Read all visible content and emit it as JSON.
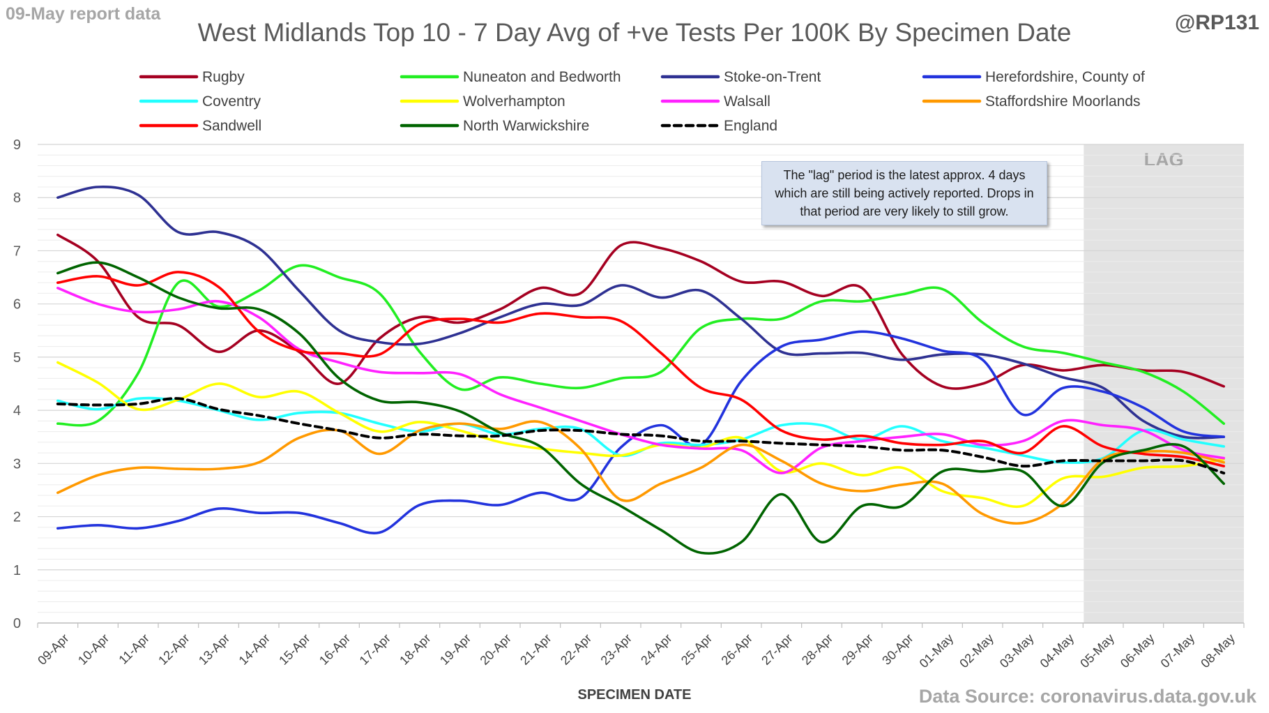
{
  "header": {
    "report_tag": "09-May report data",
    "handle": "@RP131",
    "source": "Data Source: coronavirus.data.gov.uk"
  },
  "note": "The \"lag\" period is the latest approx. 4 days which are still being actively reported.  Drops in that period are very likely to still grow.",
  "chart_data": {
    "type": "line",
    "title": "West Midlands Top 10 - 7 Day Avg of +ve Tests Per 100K By Specimen Date",
    "xlabel": "SPECIMEN DATE",
    "ylabel": "",
    "ylim": [
      0,
      9
    ],
    "yticks": [
      "0",
      "1",
      "2",
      "3",
      "4",
      "5",
      "6",
      "7",
      "8",
      "9"
    ],
    "grid": true,
    "legend_position": "top",
    "lag_label": "LAG",
    "lag_region": [
      "05-May",
      "08-May"
    ],
    "categories": [
      "09-Apr",
      "10-Apr",
      "11-Apr",
      "12-Apr",
      "13-Apr",
      "14-Apr",
      "15-Apr",
      "16-Apr",
      "17-Apr",
      "18-Apr",
      "19-Apr",
      "20-Apr",
      "21-Apr",
      "22-Apr",
      "23-Apr",
      "24-Apr",
      "25-Apr",
      "26-Apr",
      "27-Apr",
      "28-Apr",
      "29-Apr",
      "30-Apr",
      "01-May",
      "02-May",
      "03-May",
      "04-May",
      "05-May",
      "06-May",
      "07-May",
      "08-May"
    ],
    "series": [
      {
        "name": "Rugby",
        "color": "#a50021",
        "dashed": false,
        "values": [
          7.3,
          6.8,
          5.75,
          5.6,
          5.1,
          5.5,
          5.1,
          4.5,
          5.35,
          5.75,
          5.65,
          5.9,
          6.3,
          6.2,
          7.1,
          7.05,
          6.8,
          6.42,
          6.42,
          6.15,
          6.3,
          5.05,
          4.45,
          4.5,
          4.85,
          4.75,
          4.85,
          4.75,
          4.72,
          4.45
        ]
      },
      {
        "name": "Nuneaton and Bedworth",
        "color": "#22ee22",
        "dashed": false,
        "values": [
          3.75,
          3.8,
          4.7,
          6.4,
          5.95,
          6.25,
          6.72,
          6.5,
          6.2,
          5.1,
          4.4,
          4.62,
          4.5,
          4.42,
          4.6,
          4.72,
          5.55,
          5.72,
          5.72,
          6.05,
          6.05,
          6.18,
          6.28,
          5.65,
          5.2,
          5.08,
          4.9,
          4.72,
          4.35,
          3.75
        ]
      },
      {
        "name": "Stoke-on-Trent",
        "color": "#2e3192",
        "dashed": false,
        "values": [
          8.0,
          8.2,
          8.05,
          7.35,
          7.35,
          7.05,
          6.25,
          5.5,
          5.28,
          5.25,
          5.45,
          5.75,
          6.0,
          5.98,
          6.35,
          6.12,
          6.25,
          5.72,
          5.1,
          5.07,
          5.08,
          4.95,
          5.05,
          5.05,
          4.88,
          4.62,
          4.42,
          3.8,
          3.5,
          3.5
        ]
      },
      {
        "name": "Herefordshire, County of",
        "color": "#2233dd",
        "dashed": false,
        "values": [
          1.78,
          1.84,
          1.78,
          1.92,
          2.15,
          2.07,
          2.07,
          1.88,
          1.7,
          2.22,
          2.3,
          2.22,
          2.45,
          2.35,
          3.3,
          3.72,
          3.35,
          4.55,
          5.2,
          5.33,
          5.48,
          5.35,
          5.12,
          4.95,
          3.92,
          4.42,
          4.35,
          4.05,
          3.6,
          3.5
        ]
      },
      {
        "name": "Coventry",
        "color": "#22ffff",
        "dashed": false,
        "values": [
          4.18,
          4.02,
          4.22,
          4.18,
          4.0,
          3.82,
          3.95,
          3.95,
          3.75,
          3.6,
          3.75,
          3.55,
          3.65,
          3.65,
          3.15,
          3.38,
          3.35,
          3.45,
          3.72,
          3.72,
          3.45,
          3.7,
          3.42,
          3.3,
          3.15,
          3.02,
          3.1,
          3.62,
          3.45,
          3.32
        ]
      },
      {
        "name": "Wolverhampton",
        "color": "#ffff00",
        "dashed": false,
        "values": [
          4.9,
          4.52,
          4.02,
          4.2,
          4.5,
          4.25,
          4.35,
          3.95,
          3.6,
          3.78,
          3.62,
          3.4,
          3.28,
          3.2,
          3.15,
          3.35,
          3.3,
          3.48,
          2.85,
          3.0,
          2.78,
          2.92,
          2.48,
          2.35,
          2.2,
          2.72,
          2.75,
          2.92,
          2.95,
          3.08
        ]
      },
      {
        "name": "Walsall",
        "color": "#ff22ff",
        "dashed": false,
        "values": [
          6.3,
          6.0,
          5.85,
          5.9,
          6.05,
          5.75,
          5.15,
          4.9,
          4.72,
          4.7,
          4.68,
          4.3,
          4.05,
          3.8,
          3.55,
          3.35,
          3.28,
          3.25,
          2.82,
          3.3,
          3.42,
          3.5,
          3.55,
          3.35,
          3.42,
          3.8,
          3.72,
          3.62,
          3.25,
          3.1
        ]
      },
      {
        "name": "Staffordshire Moorlands",
        "color": "#ff9900",
        "dashed": false,
        "values": [
          2.45,
          2.78,
          2.92,
          2.9,
          2.9,
          3.02,
          3.48,
          3.62,
          3.18,
          3.62,
          3.75,
          3.65,
          3.78,
          3.28,
          2.32,
          2.62,
          2.92,
          3.35,
          3.05,
          2.62,
          2.48,
          2.6,
          2.62,
          2.05,
          1.88,
          2.25,
          3.08,
          3.22,
          3.2,
          3.02
        ]
      },
      {
        "name": "Sandwell",
        "color": "#ff0000",
        "dashed": false,
        "values": [
          6.4,
          6.52,
          6.35,
          6.6,
          6.32,
          5.48,
          5.12,
          5.07,
          5.05,
          5.62,
          5.72,
          5.65,
          5.82,
          5.75,
          5.68,
          5.08,
          4.42,
          4.2,
          3.62,
          3.45,
          3.52,
          3.38,
          3.35,
          3.42,
          3.2,
          3.7,
          3.32,
          3.18,
          3.12,
          2.95
        ]
      },
      {
        "name": "North Warwickshire",
        "color": "#006400",
        "dashed": false,
        "values": [
          6.58,
          6.78,
          6.5,
          6.12,
          5.92,
          5.9,
          5.45,
          4.6,
          4.18,
          4.15,
          3.98,
          3.58,
          3.32,
          2.62,
          2.2,
          1.75,
          1.32,
          1.52,
          2.42,
          1.52,
          2.2,
          2.2,
          2.85,
          2.85,
          2.85,
          2.2,
          3.02,
          3.25,
          3.32,
          2.62
        ]
      },
      {
        "name": "England",
        "color": "#000000",
        "dashed": true,
        "values": [
          4.12,
          4.1,
          4.12,
          4.22,
          4.02,
          3.9,
          3.75,
          3.62,
          3.48,
          3.55,
          3.52,
          3.52,
          3.62,
          3.62,
          3.55,
          3.52,
          3.42,
          3.42,
          3.38,
          3.35,
          3.32,
          3.25,
          3.25,
          3.12,
          2.95,
          3.05,
          3.05,
          3.05,
          3.05,
          2.82
        ]
      }
    ]
  }
}
